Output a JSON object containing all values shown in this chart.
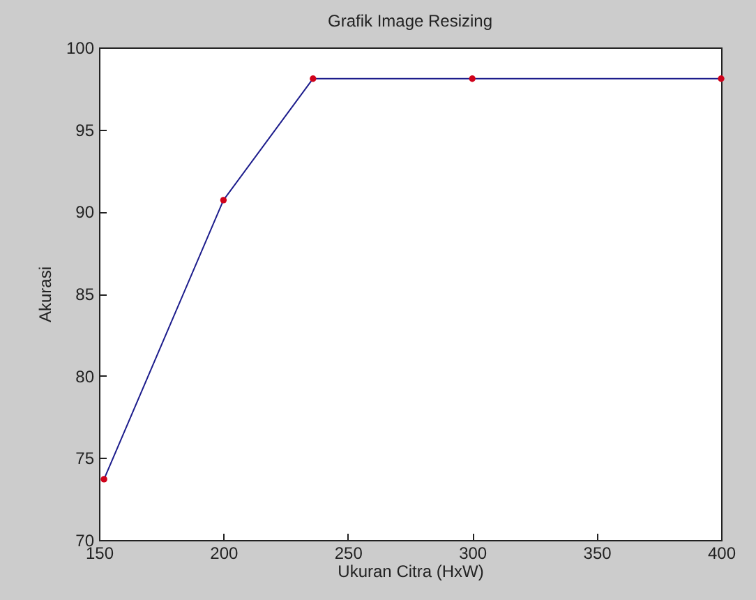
{
  "chart_data": {
    "type": "line",
    "title": "Grafik Image Resizing",
    "xlabel": "Ukuran Citra (HxW)",
    "ylabel": "Akurasi",
    "x": [
      152,
      200,
      236,
      300,
      400
    ],
    "series": [
      {
        "color": "#1c1c8c",
        "colors": [
          "#d0021b",
          "#d0021b",
          "#d0021b",
          "#d0021b",
          "#d0021b"
        ],
        "values": [
          73.7,
          90.7,
          98.1,
          98.1,
          98.1
        ]
      }
    ],
    "xlim": [
      150,
      400
    ],
    "xticks": [
      150,
      200,
      250,
      300,
      350,
      400
    ],
    "ylim": [
      70,
      100
    ],
    "yticks": [
      70,
      75,
      80,
      85,
      90,
      95,
      100
    ],
    "grid": false,
    "marker": "circle",
    "line_style": "solid"
  }
}
